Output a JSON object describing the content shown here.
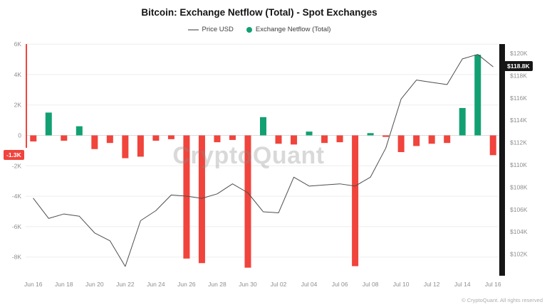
{
  "title": "Bitcoin: Exchange Netflow (Total) - Spot Exchanges",
  "legend": {
    "price_label": "Price USD",
    "netflow_label": "Exchange Netflow (Total)"
  },
  "badges": {
    "netflow_current": "-1.3K",
    "price_current": "$118.8K"
  },
  "watermark": "CryptoQuant",
  "footer": "© CryptoQuant. All rights reserved",
  "colors": {
    "positive": "#12a072",
    "negative": "#f0443c",
    "line": "#4d4d4d",
    "grid": "#ededed",
    "zero_line": "#dcdcdc",
    "axis_black": "#161616",
    "tick": "#8e8e8e"
  },
  "chart_data": {
    "type": "bar+line",
    "title": "Bitcoin: Exchange Netflow (Total) - Spot Exchanges",
    "x": [
      "Jun 16",
      "Jun 17",
      "Jun 18",
      "Jun 19",
      "Jun 20",
      "Jun 21",
      "Jun 22",
      "Jun 23",
      "Jun 24",
      "Jun 25",
      "Jun 26",
      "Jun 27",
      "Jun 28",
      "Jun 29",
      "Jun 30",
      "Jul 01",
      "Jul 02",
      "Jul 03",
      "Jul 04",
      "Jul 05",
      "Jul 06",
      "Jul 07",
      "Jul 08",
      "Jul 09",
      "Jul 10",
      "Jul 11",
      "Jul 12",
      "Jul 13",
      "Jul 14",
      "Jul 15",
      "Jul 16"
    ],
    "x_tick_interval": 2,
    "series": [
      {
        "name": "Exchange Netflow (Total)",
        "type": "bar",
        "axis": "left",
        "unit": "K BTC",
        "values": [
          -0.4,
          1.5,
          -0.35,
          0.6,
          -0.9,
          -0.5,
          -1.5,
          -1.4,
          -0.35,
          -0.25,
          -8.1,
          -8.4,
          -0.45,
          -0.3,
          -8.7,
          1.2,
          -0.55,
          -0.6,
          0.25,
          -0.5,
          -0.45,
          -8.6,
          0.15,
          -0.1,
          -1.1,
          -0.7,
          -0.55,
          -0.5,
          1.8,
          5.3,
          -1.3
        ]
      },
      {
        "name": "Price USD",
        "type": "line",
        "axis": "right",
        "unit": "K USD",
        "values": [
          107.0,
          105.2,
          105.6,
          105.4,
          103.9,
          103.2,
          100.9,
          105.0,
          105.9,
          107.3,
          107.2,
          107.0,
          107.4,
          108.3,
          107.5,
          105.8,
          105.7,
          108.9,
          108.1,
          108.2,
          108.3,
          108.1,
          108.9,
          111.5,
          115.9,
          117.6,
          117.4,
          117.2,
          119.5,
          119.9,
          118.8
        ]
      }
    ],
    "left_axis": {
      "ticks": [
        "6K",
        "4K",
        "2K",
        "0",
        "-2K",
        "-4K",
        "-6K",
        "-8K"
      ],
      "tick_values": [
        6,
        4,
        2,
        0,
        -2,
        -4,
        -6,
        -8
      ],
      "range": [
        -9.1,
        6.3
      ]
    },
    "right_axis": {
      "ticks": [
        "$120K",
        "$118K",
        "$116K",
        "$114K",
        "$112K",
        "$110K",
        "$108K",
        "$106K",
        "$104K",
        "$102K"
      ],
      "tick_values": [
        120,
        118,
        116,
        114,
        112,
        110,
        108,
        106,
        104,
        102
      ],
      "range_k": [
        100.2,
        121.2
      ]
    },
    "grid": "horizontal",
    "legend_position": "top-center"
  }
}
